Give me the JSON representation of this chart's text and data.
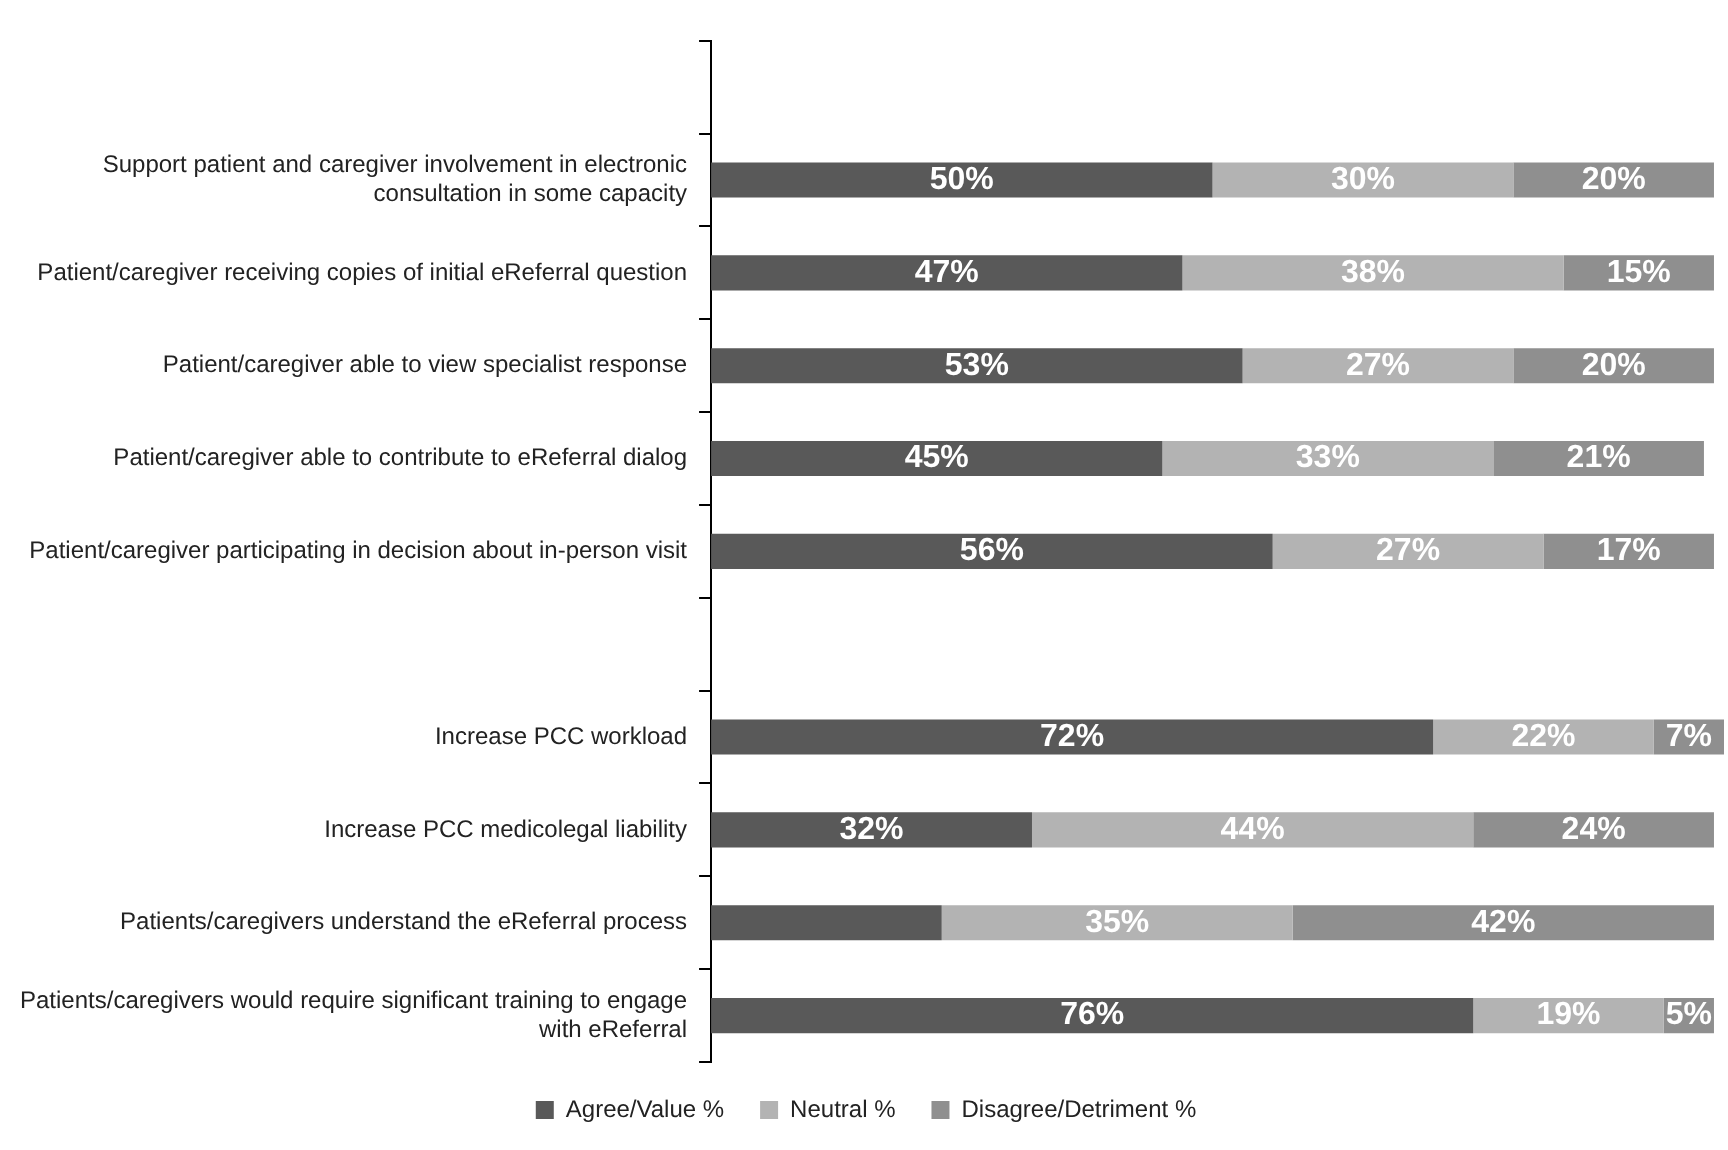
{
  "chart_data": {
    "type": "bar",
    "orientation": "horizontal",
    "stacked": true,
    "xlim": [
      0,
      101
    ],
    "tick_labels": "y",
    "grid": false,
    "legend": "bottom",
    "categories": [
      null,
      "Support patient and caregiver involvement in electronic consultation in some capacity",
      "Patient/caregiver receiving copies of initial eReferral question",
      "Patient/caregiver able to view specialist response",
      "Patient/caregiver able to contribute to eReferral dialog",
      "Patient/caregiver participating in decision about in-person visit",
      null,
      "Increase PCC workload",
      "Increase PCC medicolegal liability",
      "Patients/caregivers understand the eReferral process",
      "Patients/caregivers would require significant training to engage with eReferral"
    ],
    "series": [
      {
        "name": "Agree/Value %",
        "color": "#595959",
        "values": [
          null,
          50,
          47,
          53,
          45,
          56,
          null,
          72,
          32,
          23,
          76
        ],
        "value_labels": [
          null,
          "50%",
          "47%",
          "53%",
          "45%",
          "56%",
          null,
          "72%",
          "32%",
          null,
          "76%"
        ]
      },
      {
        "name": "Neutral %",
        "color": "#b3b3b3",
        "values": [
          null,
          30,
          38,
          27,
          33,
          27,
          null,
          22,
          44,
          35,
          19
        ],
        "value_labels": [
          null,
          "30%",
          "38%",
          "27%",
          "33%",
          "27%",
          null,
          "22%",
          "44%",
          "35%",
          "19%"
        ]
      },
      {
        "name": "Disagree/Detriment %",
        "color": "#8f8f8f",
        "values": [
          null,
          20,
          15,
          20,
          21,
          17,
          null,
          7,
          24,
          42,
          5
        ],
        "value_labels": [
          null,
          "20%",
          "15%",
          "20%",
          "21%",
          "17%",
          null,
          "7%",
          "24%",
          "42%",
          "5%"
        ]
      }
    ]
  }
}
